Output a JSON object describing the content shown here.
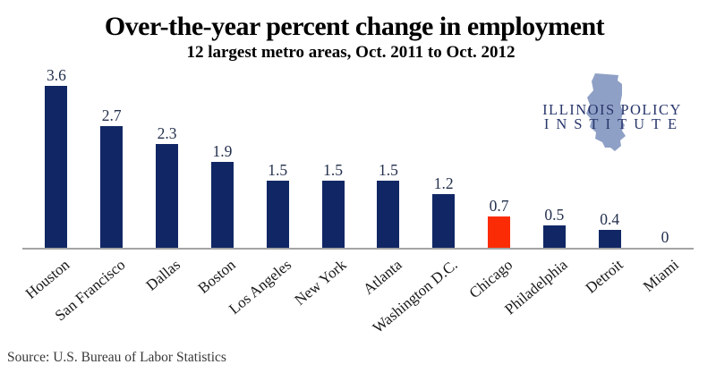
{
  "chart_data": {
    "type": "bar",
    "title": "Over-the-year percent change in employment",
    "subtitle": "12 largest metro areas, Oct. 2011 to Oct. 2012",
    "categories": [
      "Houston",
      "San Francisco",
      "Dallas",
      "Boston",
      "Los Angeles",
      "New York",
      "Atlanta",
      "Washington D.C.",
      "Chicago",
      "Philadelphia",
      "Detroit",
      "Miami"
    ],
    "values": [
      3.6,
      2.7,
      2.3,
      1.9,
      1.5,
      1.5,
      1.5,
      1.2,
      0.7,
      0.5,
      0.4,
      0
    ],
    "value_labels": [
      "3.6",
      "2.7",
      "2.3",
      "1.9",
      "1.5",
      "1.5",
      "1.5",
      "1.2",
      "0.7",
      "0.5",
      "0.4",
      "0"
    ],
    "highlight_category": "Chicago",
    "bar_color": "#112765",
    "highlight_color": "#fb2c05",
    "axis_color": "#a4a4a4",
    "ylim": [
      0,
      3.8
    ],
    "grid": false,
    "legend": false,
    "xlabel": "",
    "ylabel": ""
  },
  "logo": {
    "line1": "ILLINOIS POLICY",
    "line2": "INSTITUTE",
    "icon": "illinois-state-silhouette",
    "state_color": "#8fa0c6",
    "text_color": "#28366b"
  },
  "source": {
    "text": "Source: U.S. Bureau of Labor Statistics"
  }
}
